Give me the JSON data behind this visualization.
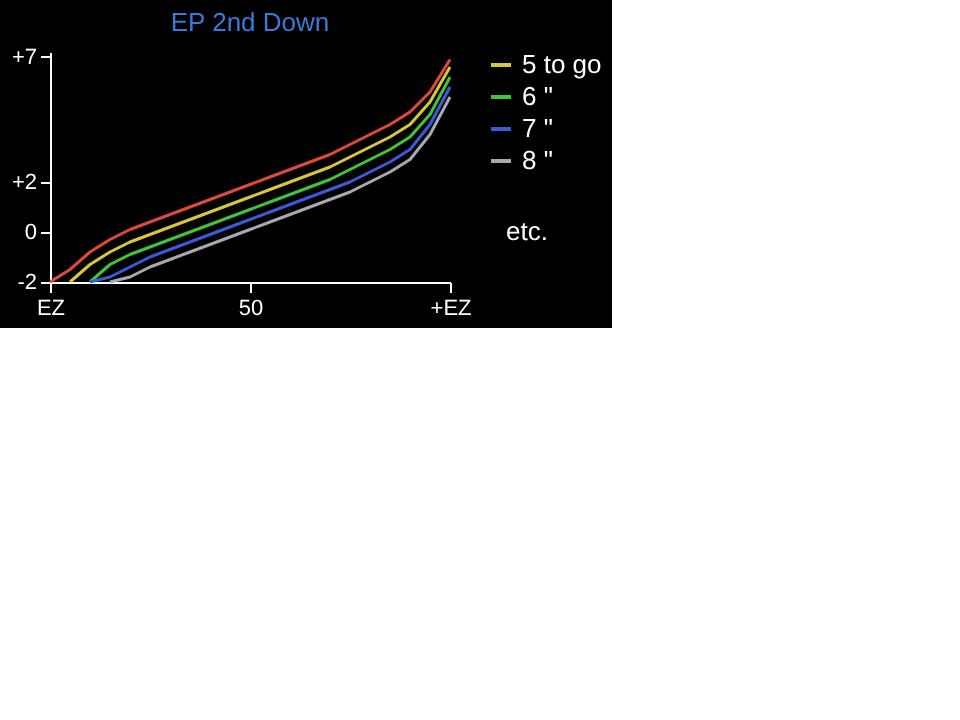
{
  "chart_data": {
    "type": "line",
    "title": "EP 2nd Down",
    "categories": [
      "EZ",
      null,
      null,
      null,
      null,
      null,
      null,
      null,
      null,
      null,
      "50",
      null,
      null,
      null,
      null,
      null,
      null,
      null,
      null,
      null,
      "+EZ"
    ],
    "ylim": [
      -2,
      7.2
    ],
    "yticks": [
      -2,
      0,
      {
        "value": 2,
        "label": "+2"
      },
      {
        "value": 7,
        "label": "+7"
      }
    ],
    "series": [
      {
        "color": "#e0483a",
        "values": [
          -2,
          -1.5,
          -0.8,
          -0.3,
          0.1,
          0.4,
          0.7,
          1.0,
          1.3,
          1.6,
          1.9,
          2.2,
          2.5,
          2.8,
          3.1,
          3.5,
          3.9,
          4.3,
          4.8,
          5.6,
          6.9
        ]
      },
      {
        "name": "5 to go",
        "color": "#d8c836",
        "values": [
          null,
          -2,
          -1.3,
          -0.8,
          -0.4,
          -0.1,
          0.2,
          0.5,
          0.8,
          1.1,
          1.4,
          1.7,
          2.0,
          2.3,
          2.6,
          3.0,
          3.4,
          3.8,
          4.3,
          5.2,
          6.6
        ]
      },
      {
        "name": "6 \"",
        "color": "#3fc43a",
        "values": [
          null,
          null,
          -2,
          -1.3,
          -0.9,
          -0.6,
          -0.3,
          0,
          0.3,
          0.6,
          0.9,
          1.2,
          1.5,
          1.8,
          2.1,
          2.5,
          2.9,
          3.3,
          3.8,
          4.7,
          6.2
        ]
      },
      {
        "name": "7 \"",
        "color": "#3a5ad8",
        "values": [
          null,
          null,
          -2,
          -1.8,
          -1.4,
          -1.0,
          -0.7,
          -0.4,
          -0.1,
          0.2,
          0.5,
          0.8,
          1.1,
          1.4,
          1.7,
          2.0,
          2.4,
          2.8,
          3.3,
          4.3,
          5.8
        ]
      },
      {
        "name": "8 \"",
        "color": "#a8a8b0",
        "values": [
          null,
          null,
          null,
          -2,
          -1.8,
          -1.4,
          -1.1,
          -0.8,
          -0.5,
          -0.2,
          0.1,
          0.4,
          0.7,
          1.0,
          1.3,
          1.6,
          2.0,
          2.4,
          2.9,
          3.9,
          5.4
        ]
      }
    ],
    "legend": "top right",
    "annotations": [
      "etc."
    ]
  }
}
